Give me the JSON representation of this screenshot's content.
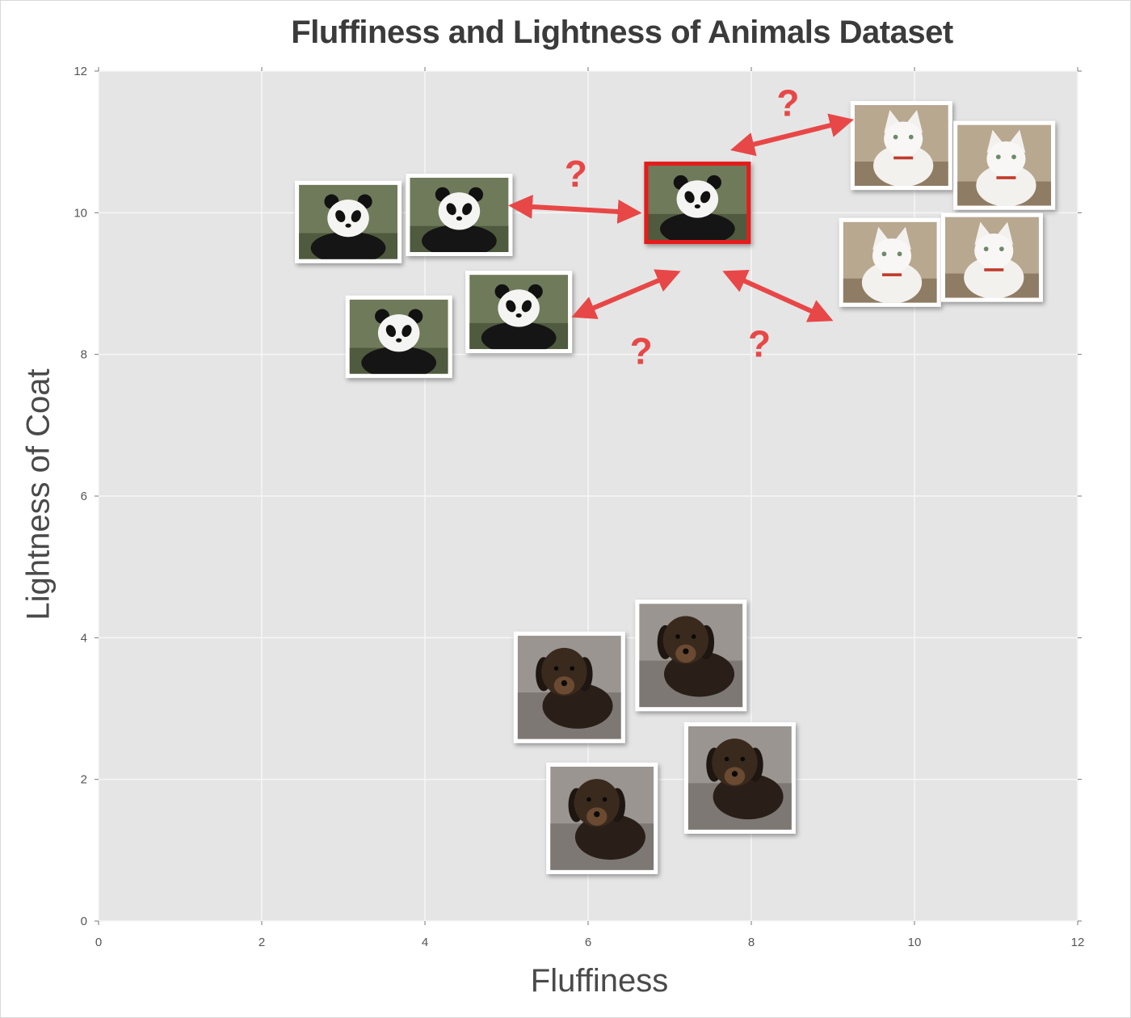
{
  "chart_data": {
    "type": "scatter",
    "title": "Fluffiness and Lightness of Animals Dataset",
    "xlabel": "Fluffiness",
    "ylabel": "Lightness of Coat",
    "xlim": [
      0,
      12
    ],
    "ylim": [
      0,
      12
    ],
    "xticks": [
      "0",
      "2",
      "4",
      "6",
      "8",
      "10",
      "12"
    ],
    "yticks": [
      "0",
      "2",
      "4",
      "6",
      "8",
      "10",
      "12"
    ],
    "grid": true,
    "groups": [
      {
        "kind": "panda",
        "points": [
          {
            "x": 3.06,
            "y": 9.87
          },
          {
            "x": 4.42,
            "y": 9.97
          },
          {
            "x": 3.68,
            "y": 8.25
          },
          {
            "x": 5.15,
            "y": 8.6
          }
        ]
      },
      {
        "kind": "cat",
        "points": [
          {
            "x": 9.84,
            "y": 10.95
          },
          {
            "x": 11.1,
            "y": 10.67
          },
          {
            "x": 9.7,
            "y": 9.3
          },
          {
            "x": 10.95,
            "y": 9.37
          }
        ]
      },
      {
        "kind": "dog",
        "points": [
          {
            "x": 5.77,
            "y": 3.3
          },
          {
            "x": 7.26,
            "y": 3.75
          },
          {
            "x": 6.17,
            "y": 1.45
          },
          {
            "x": 7.86,
            "y": 2.02
          }
        ]
      }
    ],
    "query": {
      "kind": "panda",
      "x": 7.34,
      "y": 10.14,
      "highlight_color": "#e51f1f"
    },
    "annotations": [
      {
        "text": "?",
        "from": {
          "x": 5.08,
          "y": 10.1
        },
        "to": {
          "x": 6.6,
          "y": 10.0
        },
        "label_at": {
          "x": 5.85,
          "y": 10.55
        }
      },
      {
        "text": "?",
        "from": {
          "x": 7.8,
          "y": 10.9
        },
        "to": {
          "x": 9.2,
          "y": 11.3
        },
        "label_at": {
          "x": 8.45,
          "y": 11.55
        }
      },
      {
        "text": "?",
        "from": {
          "x": 5.85,
          "y": 8.55
        },
        "to": {
          "x": 7.08,
          "y": 9.15
        },
        "label_at": {
          "x": 6.65,
          "y": 8.05
        }
      },
      {
        "text": "?",
        "from": {
          "x": 7.7,
          "y": 9.15
        },
        "to": {
          "x": 8.95,
          "y": 8.5
        },
        "label_at": {
          "x": 8.1,
          "y": 8.15
        }
      }
    ],
    "arrow_color": "#e84747"
  }
}
